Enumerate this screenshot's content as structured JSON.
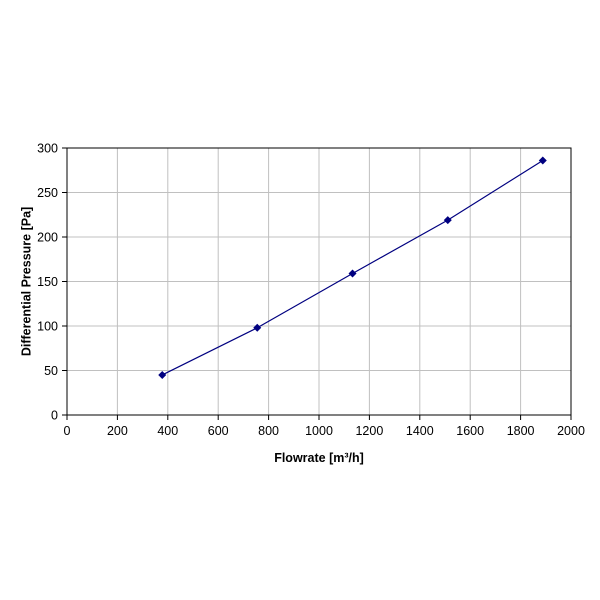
{
  "chart_data": {
    "type": "scatter",
    "title": "",
    "xlabel": "Flowrate [m³/h]",
    "ylabel": "Differential Pressure [Pa]",
    "xlim": [
      0,
      2000
    ],
    "ylim": [
      0,
      300
    ],
    "xticks": [
      0,
      200,
      400,
      600,
      800,
      1000,
      1200,
      1400,
      1600,
      1800,
      2000
    ],
    "yticks": [
      0,
      50,
      100,
      150,
      200,
      250,
      300
    ],
    "grid": true,
    "series": [
      {
        "x": [
          378,
          755,
          1133,
          1511,
          1888
        ],
        "y": [
          45,
          98,
          159,
          219,
          286
        ],
        "color": "#000080",
        "marker": "diamond",
        "line": true
      }
    ]
  }
}
